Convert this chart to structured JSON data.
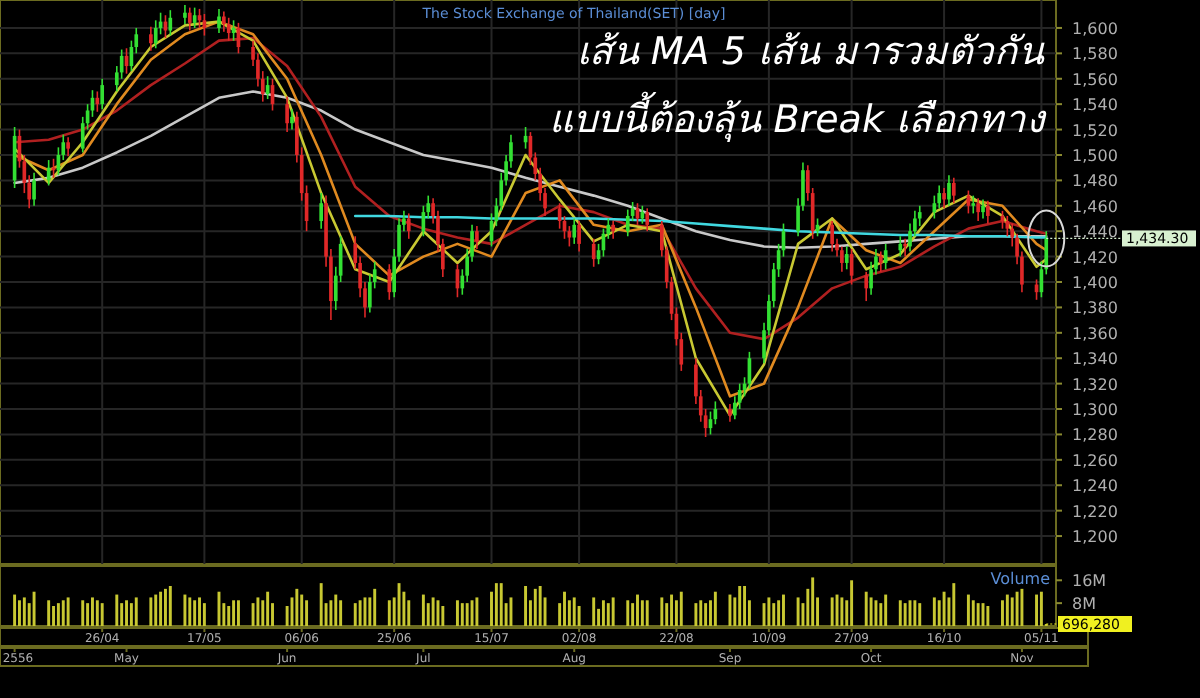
{
  "chart_data": [
    {
      "type": "candlestick",
      "title": "The Stock Exchange of Thailand(SET) [day]",
      "annotations": [
        "เส้น MA 5 เส้น  มารวมตัวกัน",
        "แบบนี้ต้องลุ้น Break เลือกทาง",
        {
          "text": "1,434.30",
          "x": "--11-06",
          "y": 1434.3
        }
      ],
      "x": [
        "--04-08",
        "--04-09",
        "--04-10",
        "--04-11",
        "--04-12",
        "--04-15",
        "--04-16",
        "--04-17",
        "--04-18",
        "--04-19",
        "--04-22",
        "--04-23",
        "--04-24",
        "--04-25",
        "--04-26",
        "--04-29",
        "--04-30",
        "--05-01",
        "--05-02",
        "--05-03",
        "--05-06",
        "--05-07",
        "--05-08",
        "--05-09",
        "--05-10",
        "--05-13",
        "--05-14",
        "--05-15",
        "--05-16",
        "--05-17",
        "--05-20",
        "--05-21",
        "--05-22",
        "--05-23",
        "--05-24",
        "--05-27",
        "--05-28",
        "--05-29",
        "--05-30",
        "--05-31",
        "--06-03",
        "--06-04",
        "--06-05",
        "--06-06",
        "--06-07",
        "--06-10",
        "--06-11",
        "--06-12",
        "--06-13",
        "--06-14",
        "--06-17",
        "--06-18",
        "--06-19",
        "--06-20",
        "--06-21",
        "--06-24",
        "--06-25",
        "--06-26",
        "--06-27",
        "--06-28",
        "--07-01",
        "--07-02",
        "--07-03",
        "--07-04",
        "--07-05",
        "--07-08",
        "--07-09",
        "--07-10",
        "--07-11",
        "--07-12",
        "--07-15",
        "--07-16",
        "--07-17",
        "--07-18",
        "--07-19",
        "--07-22",
        "--07-23",
        "--07-24",
        "--07-25",
        "--07-26",
        "--07-29",
        "--07-30",
        "--07-31",
        "--08-01",
        "--08-02",
        "--08-05",
        "--08-06",
        "--08-07",
        "--08-08",
        "--08-09",
        "--08-12",
        "--08-13",
        "--08-14",
        "--08-15",
        "--08-16",
        "--08-19",
        "--08-20",
        "--08-21",
        "--08-22",
        "--08-23",
        "--08-26",
        "--08-27",
        "--08-28",
        "--08-29",
        "--08-30",
        "--09-02",
        "--09-03",
        "--09-04",
        "--09-05",
        "--09-06",
        "--09-09",
        "--09-10",
        "--09-11",
        "--09-12",
        "--09-13",
        "--09-16",
        "--09-17",
        "--09-18",
        "--09-19",
        "--09-20",
        "--09-23",
        "--09-24",
        "--09-25",
        "--09-26",
        "--09-27",
        "--09-30",
        "--10-01",
        "--10-02",
        "--10-03",
        "--10-04",
        "--10-07",
        "--10-08",
        "--10-09",
        "--10-10",
        "--10-11",
        "--10-14",
        "--10-15",
        "--10-16",
        "--10-17",
        "--10-18",
        "--10-21",
        "--10-22",
        "--10-23",
        "--10-24",
        "--10-25",
        "--10-28",
        "--10-29",
        "--10-30",
        "--10-31",
        "--11-01",
        "--11-04",
        "--11-05",
        "--11-06"
      ],
      "ohlc": [
        [
          1480,
          1522,
          1474,
          1515
        ],
        [
          1515,
          1520,
          1490,
          1495
        ],
        [
          1495,
          1500,
          1470,
          1478
        ],
        [
          1478,
          1484,
          1458,
          1465
        ],
        [
          1465,
          1486,
          1460,
          1480
        ],
        [
          1480,
          1496,
          1476,
          1490
        ],
        [
          1490,
          1497,
          1482,
          1488
        ],
        [
          1488,
          1506,
          1484,
          1500
        ],
        [
          1500,
          1516,
          1496,
          1510
        ],
        [
          1510,
          1514,
          1499,
          1505
        ],
        [
          1505,
          1530,
          1502,
          1525
        ],
        [
          1525,
          1540,
          1520,
          1535
        ],
        [
          1535,
          1551,
          1530,
          1545
        ],
        [
          1545,
          1550,
          1534,
          1540
        ],
        [
          1540,
          1560,
          1536,
          1555
        ],
        [
          1555,
          1570,
          1550,
          1565
        ],
        [
          1565,
          1583,
          1560,
          1578
        ],
        [
          1578,
          1584,
          1564,
          1570
        ],
        [
          1570,
          1590,
          1566,
          1585
        ],
        [
          1585,
          1600,
          1580,
          1595
        ],
        [
          1595,
          1601,
          1582,
          1588
        ],
        [
          1588,
          1606,
          1584,
          1600
        ],
        [
          1600,
          1612,
          1595,
          1605
        ],
        [
          1605,
          1610,
          1592,
          1598
        ],
        [
          1598,
          1614,
          1594,
          1608
        ],
        [
          1608,
          1618,
          1603,
          1612
        ],
        [
          1612,
          1616,
          1598,
          1604
        ],
        [
          1604,
          1616,
          1600,
          1610
        ],
        [
          1610,
          1615,
          1600,
          1606
        ],
        [
          1606,
          1611,
          1594,
          1600
        ],
        [
          1600,
          1615,
          1596,
          1609
        ],
        [
          1609,
          1613,
          1597,
          1603
        ],
        [
          1603,
          1608,
          1590,
          1596
        ],
        [
          1596,
          1606,
          1590,
          1600
        ],
        [
          1600,
          1604,
          1580,
          1585
        ],
        [
          1585,
          1590,
          1570,
          1575
        ],
        [
          1575,
          1580,
          1554,
          1560
        ],
        [
          1560,
          1566,
          1542,
          1548
        ],
        [
          1548,
          1562,
          1544,
          1555
        ],
        [
          1555,
          1560,
          1535,
          1540
        ],
        [
          1540,
          1546,
          1518,
          1525
        ],
        [
          1525,
          1536,
          1520,
          1530
        ],
        [
          1530,
          1534,
          1494,
          1500
        ],
        [
          1500,
          1506,
          1464,
          1470
        ],
        [
          1470,
          1476,
          1440,
          1448
        ],
        [
          1448,
          1470,
          1442,
          1462
        ],
        [
          1462,
          1468,
          1412,
          1420
        ],
        [
          1420,
          1426,
          1370,
          1385
        ],
        [
          1385,
          1412,
          1378,
          1405
        ],
        [
          1405,
          1436,
          1400,
          1430
        ],
        [
          1430,
          1436,
          1410,
          1415
        ],
        [
          1415,
          1420,
          1388,
          1395
        ],
        [
          1395,
          1400,
          1372,
          1380
        ],
        [
          1380,
          1406,
          1376,
          1400
        ],
        [
          1400,
          1416,
          1395,
          1410
        ],
        [
          1410,
          1414,
          1386,
          1392
        ],
        [
          1392,
          1426,
          1388,
          1420
        ],
        [
          1420,
          1450,
          1416,
          1445
        ],
        [
          1445,
          1456,
          1440,
          1450
        ],
        [
          1450,
          1454,
          1434,
          1440
        ],
        [
          1440,
          1460,
          1436,
          1455
        ],
        [
          1455,
          1468,
          1450,
          1462
        ],
        [
          1462,
          1466,
          1446,
          1452
        ],
        [
          1452,
          1456,
          1424,
          1430
        ],
        [
          1430,
          1434,
          1404,
          1410
        ],
        [
          1410,
          1414,
          1388,
          1395
        ],
        [
          1395,
          1410,
          1390,
          1405
        ],
        [
          1405,
          1426,
          1400,
          1420
        ],
        [
          1420,
          1445,
          1416,
          1440
        ],
        [
          1440,
          1444,
          1426,
          1432
        ],
        [
          1432,
          1454,
          1428,
          1448
        ],
        [
          1448,
          1466,
          1444,
          1460
        ],
        [
          1460,
          1486,
          1456,
          1480
        ],
        [
          1480,
          1500,
          1476,
          1495
        ],
        [
          1495,
          1516,
          1490,
          1510
        ],
        [
          1510,
          1522,
          1505,
          1515
        ],
        [
          1515,
          1518,
          1492,
          1498
        ],
        [
          1498,
          1502,
          1480,
          1485
        ],
        [
          1485,
          1490,
          1464,
          1470
        ],
        [
          1470,
          1474,
          1452,
          1458
        ],
        [
          1458,
          1462,
          1442,
          1448
        ],
        [
          1448,
          1452,
          1434,
          1440
        ],
        [
          1440,
          1444,
          1428,
          1435
        ],
        [
          1435,
          1450,
          1430,
          1445
        ],
        [
          1445,
          1448,
          1424,
          1430
        ],
        [
          1430,
          1434,
          1412,
          1418
        ],
        [
          1418,
          1430,
          1414,
          1425
        ],
        [
          1425,
          1442,
          1420,
          1438
        ],
        [
          1438,
          1450,
          1434,
          1445
        ],
        [
          1445,
          1448,
          1434,
          1440
        ],
        [
          1440,
          1457,
          1436,
          1452
        ],
        [
          1452,
          1463,
          1448,
          1458
        ],
        [
          1458,
          1462,
          1445,
          1450
        ],
        [
          1450,
          1460,
          1446,
          1455
        ],
        [
          1455,
          1458,
          1440,
          1445
        ],
        [
          1445,
          1448,
          1420,
          1425
        ],
        [
          1425,
          1428,
          1395,
          1400
        ],
        [
          1400,
          1404,
          1370,
          1375
        ],
        [
          1375,
          1380,
          1350,
          1355
        ],
        [
          1355,
          1360,
          1330,
          1335
        ],
        [
          1335,
          1340,
          1304,
          1310
        ],
        [
          1310,
          1315,
          1290,
          1295
        ],
        [
          1295,
          1300,
          1278,
          1285
        ],
        [
          1285,
          1298,
          1280,
          1292
        ],
        [
          1292,
          1306,
          1288,
          1300
        ],
        [
          1300,
          1304,
          1290,
          1295
        ],
        [
          1295,
          1310,
          1292,
          1305
        ],
        [
          1305,
          1320,
          1300,
          1315
        ],
        [
          1315,
          1325,
          1310,
          1320
        ],
        [
          1320,
          1345,
          1316,
          1340
        ],
        [
          1340,
          1368,
          1336,
          1362
        ],
        [
          1362,
          1390,
          1358,
          1385
        ],
        [
          1385,
          1415,
          1380,
          1410
        ],
        [
          1410,
          1430,
          1404,
          1425
        ],
        [
          1425,
          1446,
          1420,
          1440
        ],
        [
          1440,
          1466,
          1436,
          1460
        ],
        [
          1460,
          1494,
          1456,
          1488
        ],
        [
          1488,
          1492,
          1464,
          1470
        ],
        [
          1470,
          1474,
          1434,
          1440
        ],
        [
          1440,
          1450,
          1436,
          1445
        ],
        [
          1445,
          1448,
          1424,
          1430
        ],
        [
          1430,
          1434,
          1420,
          1425
        ],
        [
          1425,
          1428,
          1408,
          1415
        ],
        [
          1415,
          1428,
          1410,
          1422
        ],
        [
          1422,
          1426,
          1398,
          1405
        ],
        [
          1405,
          1408,
          1385,
          1395
        ],
        [
          1395,
          1416,
          1390,
          1410
        ],
        [
          1410,
          1426,
          1406,
          1420
        ],
        [
          1420,
          1424,
          1408,
          1415
        ],
        [
          1415,
          1430,
          1410,
          1425
        ],
        [
          1425,
          1436,
          1420,
          1430
        ],
        [
          1430,
          1434,
          1420,
          1428
        ],
        [
          1428,
          1446,
          1424,
          1440
        ],
        [
          1440,
          1456,
          1436,
          1450
        ],
        [
          1450,
          1460,
          1444,
          1455
        ],
        [
          1455,
          1468,
          1450,
          1462
        ],
        [
          1462,
          1476,
          1458,
          1470
        ],
        [
          1470,
          1474,
          1458,
          1465
        ],
        [
          1465,
          1484,
          1460,
          1478
        ],
        [
          1478,
          1482,
          1462,
          1468
        ],
        [
          1468,
          1472,
          1454,
          1460
        ],
        [
          1460,
          1468,
          1454,
          1462
        ],
        [
          1462,
          1466,
          1448,
          1455
        ],
        [
          1455,
          1465,
          1450,
          1460
        ],
        [
          1460,
          1464,
          1446,
          1452
        ],
        [
          1452,
          1456,
          1442,
          1448
        ],
        [
          1448,
          1452,
          1436,
          1442
        ],
        [
          1442,
          1446,
          1428,
          1435
        ],
        [
          1435,
          1438,
          1414,
          1420
        ],
        [
          1420,
          1424,
          1392,
          1398
        ],
        [
          1398,
          1402,
          1386,
          1392
        ],
        [
          1392,
          1416,
          1388,
          1410
        ],
        [
          1410,
          1440,
          1406,
          1434.3
        ]
      ],
      "series": [
        {
          "type": "line",
          "color": "#c8c8c8",
          "x": [
            "--04-08",
            "--04-15",
            "--04-22",
            "--04-29",
            "--05-06",
            "--05-13",
            "--05-20",
            "--05-27",
            "--06-03",
            "--06-10",
            "--06-17",
            "--06-24",
            "--07-01",
            "--07-08",
            "--07-15",
            "--07-22",
            "--07-29",
            "--08-05",
            "--08-12",
            "--08-19",
            "--08-26",
            "--09-02",
            "--09-09",
            "--09-16",
            "--09-23",
            "--09-30",
            "--10-07",
            "--10-14",
            "--10-21",
            "--10-28",
            "--11-04",
            "--11-06"
          ],
          "values": [
            1478,
            1482,
            1490,
            1502,
            1515,
            1530,
            1545,
            1550,
            1545,
            1535,
            1520,
            1510,
            1500,
            1495,
            1490,
            1482,
            1475,
            1468,
            1460,
            1450,
            1440,
            1433,
            1428,
            1427,
            1428,
            1430,
            1432,
            1434,
            1436,
            1436,
            1436,
            1436
          ]
        },
        {
          "type": "line",
          "color": "#b02020",
          "x": [
            "--04-08",
            "--04-15",
            "--04-22",
            "--04-29",
            "--05-06",
            "--05-13",
            "--05-20",
            "--05-27",
            "--06-03",
            "--06-10",
            "--06-17",
            "--06-24",
            "--07-01",
            "--07-08",
            "--07-15",
            "--07-22",
            "--07-29",
            "--08-05",
            "--08-12",
            "--08-19",
            "--08-26",
            "--09-02",
            "--09-09",
            "--09-16",
            "--09-23",
            "--09-30",
            "--10-07",
            "--10-14",
            "--10-21",
            "--10-28",
            "--11-04",
            "--11-06"
          ],
          "values": [
            1510,
            1512,
            1520,
            1535,
            1555,
            1572,
            1590,
            1592,
            1570,
            1530,
            1475,
            1452,
            1442,
            1435,
            1430,
            1445,
            1460,
            1455,
            1445,
            1442,
            1395,
            1360,
            1355,
            1372,
            1395,
            1405,
            1412,
            1428,
            1442,
            1448,
            1440,
            1438
          ]
        },
        {
          "type": "line",
          "color": "#e08a20",
          "x": [
            "--04-08",
            "--04-15",
            "--04-22",
            "--04-29",
            "--05-06",
            "--05-13",
            "--05-20",
            "--05-27",
            "--06-03",
            "--06-10",
            "--06-17",
            "--06-24",
            "--07-01",
            "--07-08",
            "--07-15",
            "--07-22",
            "--07-29",
            "--08-05",
            "--08-12",
            "--08-19",
            "--08-26",
            "--09-02",
            "--09-09",
            "--09-16",
            "--09-23",
            "--09-30",
            "--10-07",
            "--10-14",
            "--10-21",
            "--10-28",
            "--11-04",
            "--11-06"
          ],
          "values": [
            1500,
            1488,
            1500,
            1540,
            1575,
            1595,
            1605,
            1595,
            1560,
            1500,
            1430,
            1405,
            1420,
            1430,
            1420,
            1470,
            1480,
            1445,
            1440,
            1445,
            1380,
            1310,
            1320,
            1380,
            1450,
            1425,
            1415,
            1440,
            1465,
            1460,
            1430,
            1425
          ]
        },
        {
          "type": "line",
          "color": "#c8c832",
          "x": [
            "--04-08",
            "--04-15",
            "--04-22",
            "--04-29",
            "--05-06",
            "--05-13",
            "--05-20",
            "--05-27",
            "--06-03",
            "--06-10",
            "--06-17",
            "--06-24",
            "--07-01",
            "--07-08",
            "--07-15",
            "--07-22",
            "--07-29",
            "--08-05",
            "--08-12",
            "--08-19",
            "--08-26",
            "--09-02",
            "--09-09",
            "--09-16",
            "--09-23",
            "--09-30",
            "--10-07",
            "--10-14",
            "--10-21",
            "--10-28",
            "--11-04",
            "--11-06"
          ],
          "values": [
            1505,
            1478,
            1510,
            1550,
            1585,
            1602,
            1605,
            1590,
            1545,
            1470,
            1410,
            1400,
            1440,
            1415,
            1440,
            1500,
            1465,
            1432,
            1445,
            1440,
            1340,
            1295,
            1335,
            1430,
            1450,
            1410,
            1422,
            1455,
            1468,
            1452,
            1412,
            1418
          ]
        },
        {
          "type": "line",
          "color": "#40d8e0",
          "x": [
            "--06-17",
            "--06-24",
            "--07-01",
            "--07-08",
            "--07-15",
            "--07-22",
            "--07-29",
            "--08-05",
            "--08-12",
            "--08-19",
            "--08-26",
            "--09-02",
            "--09-09",
            "--09-16",
            "--09-23",
            "--09-30",
            "--10-07",
            "--10-14",
            "--10-21",
            "--10-28",
            "--11-04",
            "--11-06"
          ],
          "values": [
            1452,
            1452,
            1451,
            1451,
            1450,
            1450,
            1450,
            1450,
            1449,
            1448,
            1446,
            1444,
            1442,
            1440,
            1439,
            1438,
            1437,
            1437,
            1436,
            1436,
            1435,
            1435
          ]
        }
      ],
      "xlim": [
        "--04-05",
        "--11-08"
      ],
      "ylim": [
        1178,
        1622
      ],
      "yticks": [
        {
          "value": 1200,
          "label": "1,200"
        },
        {
          "value": 1220,
          "label": "1,220"
        },
        {
          "value": 1240,
          "label": "1,240"
        },
        {
          "value": 1260,
          "label": "1,260"
        },
        {
          "value": 1280,
          "label": "1,280"
        },
        {
          "value": 1300,
          "label": "1,300"
        },
        {
          "value": 1320,
          "label": "1,320"
        },
        {
          "value": 1340,
          "label": "1,340"
        },
        {
          "value": 1360,
          "label": "1,360"
        },
        {
          "value": 1380,
          "label": "1,380"
        },
        {
          "value": 1400,
          "label": "1,400"
        },
        {
          "value": 1420,
          "label": "1,420"
        },
        {
          "value": 1440,
          "label": "1,440"
        },
        {
          "value": 1460,
          "label": "1,460"
        },
        {
          "value": 1480,
          "label": "1,480"
        },
        {
          "value": 1500,
          "label": "1,500"
        },
        {
          "value": 1520,
          "label": "1,520"
        },
        {
          "value": 1540,
          "label": "1,540"
        },
        {
          "value": 1560,
          "label": "1,560"
        },
        {
          "value": 1580,
          "label": "1,580"
        },
        {
          "value": 1600,
          "label": "1,600"
        }
      ],
      "xticks": [
        {
          "value": "--04-26",
          "label": null
        },
        {
          "value": "--05-17",
          "label": null
        },
        {
          "value": "--06-06",
          "label": null
        },
        {
          "value": "--06-25",
          "label": null
        },
        {
          "value": "--07-15",
          "label": null
        },
        {
          "value": "--08-02",
          "label": null
        },
        {
          "value": "--08-22",
          "label": null
        },
        {
          "value": "--09-10",
          "label": null
        },
        {
          "value": "--09-27",
          "label": null
        },
        {
          "value": "--10-16",
          "label": null
        },
        {
          "value": "--11-05",
          "label": null
        }
      ],
      "grid": true,
      "tick_labels": "y"
    },
    {
      "type": "bar",
      "title": "Volume",
      "color": "#c8c832",
      "x": [
        "--04-08",
        "--04-09",
        "--04-10",
        "--04-11",
        "--04-12",
        "--04-15",
        "--04-16",
        "--04-17",
        "--04-18",
        "--04-19",
        "--04-22",
        "--04-23",
        "--04-24",
        "--04-25",
        "--04-26",
        "--04-29",
        "--04-30",
        "--05-01",
        "--05-02",
        "--05-03",
        "--05-06",
        "--05-07",
        "--05-08",
        "--05-09",
        "--05-10",
        "--05-13",
        "--05-14",
        "--05-15",
        "--05-16",
        "--05-17",
        "--05-20",
        "--05-21",
        "--05-22",
        "--05-23",
        "--05-24",
        "--05-27",
        "--05-28",
        "--05-29",
        "--05-30",
        "--05-31",
        "--06-03",
        "--06-04",
        "--06-05",
        "--06-06",
        "--06-07",
        "--06-10",
        "--06-11",
        "--06-12",
        "--06-13",
        "--06-14",
        "--06-17",
        "--06-18",
        "--06-19",
        "--06-20",
        "--06-21",
        "--06-24",
        "--06-25",
        "--06-26",
        "--06-27",
        "--06-28",
        "--07-01",
        "--07-02",
        "--07-03",
        "--07-04",
        "--07-05",
        "--07-08",
        "--07-09",
        "--07-10",
        "--07-11",
        "--07-12",
        "--07-15",
        "--07-16",
        "--07-17",
        "--07-18",
        "--07-19",
        "--07-22",
        "--07-23",
        "--07-24",
        "--07-25",
        "--07-26",
        "--07-29",
        "--07-30",
        "--07-31",
        "--08-01",
        "--08-02",
        "--08-05",
        "--08-06",
        "--08-07",
        "--08-08",
        "--08-09",
        "--08-12",
        "--08-13",
        "--08-14",
        "--08-15",
        "--08-16",
        "--08-19",
        "--08-20",
        "--08-21",
        "--08-22",
        "--08-23",
        "--08-26",
        "--08-27",
        "--08-28",
        "--08-29",
        "--08-30",
        "--09-02",
        "--09-03",
        "--09-04",
        "--09-05",
        "--09-06",
        "--09-09",
        "--09-10",
        "--09-11",
        "--09-12",
        "--09-13",
        "--09-16",
        "--09-17",
        "--09-18",
        "--09-19",
        "--09-20",
        "--09-23",
        "--09-24",
        "--09-25",
        "--09-26",
        "--09-27",
        "--09-30",
        "--10-01",
        "--10-02",
        "--10-03",
        "--10-04",
        "--10-07",
        "--10-08",
        "--10-09",
        "--10-10",
        "--10-11",
        "--10-14",
        "--10-15",
        "--10-16",
        "--10-17",
        "--10-18",
        "--10-21",
        "--10-22",
        "--10-23",
        "--10-24",
        "--10-25",
        "--10-28",
        "--10-29",
        "--10-30",
        "--10-31",
        "--11-01",
        "--11-04",
        "--11-05",
        "--11-06"
      ],
      "values": [
        11,
        9,
        10,
        8,
        12,
        9,
        7,
        8,
        9,
        10,
        9,
        8,
        10,
        9,
        8,
        11,
        8,
        9,
        8,
        10,
        10,
        11,
        12,
        13,
        14,
        11,
        10,
        9,
        10,
        8,
        12,
        8,
        7,
        9,
        9,
        8,
        10,
        9,
        12,
        8,
        7,
        10,
        13,
        11,
        9,
        15,
        8,
        9,
        11,
        9,
        8,
        9,
        10,
        10,
        13,
        9,
        10,
        15,
        12,
        9,
        11,
        8,
        10,
        9,
        7,
        9,
        8,
        8,
        9,
        10,
        12,
        15,
        15,
        8,
        10,
        14,
        9,
        13,
        14,
        10,
        8,
        12,
        9,
        10,
        7,
        10,
        6,
        9,
        8,
        10,
        9,
        8,
        11,
        9,
        9,
        10,
        8,
        11,
        9,
        12,
        8,
        9,
        8,
        9,
        12,
        11,
        10,
        14,
        14,
        9,
        8,
        10,
        8,
        9,
        11,
        10,
        8,
        13,
        17,
        10,
        10,
        11,
        10,
        9,
        16,
        12,
        10,
        9,
        8,
        11,
        9,
        8,
        9,
        9,
        8,
        10,
        9,
        12,
        10,
        15,
        11,
        9,
        8,
        8,
        7,
        9,
        11,
        10,
        12,
        13,
        11,
        12,
        0.7
      ],
      "xlim": [
        "--04-05",
        "--11-08"
      ],
      "ylim": [
        0,
        21
      ],
      "yticks": [
        {
          "value": 8,
          "label": "8M"
        },
        {
          "value": 16,
          "label": "16M"
        }
      ],
      "xticks": [
        {
          "value": "--04-26",
          "label": "26/04"
        },
        {
          "value": "--05-17",
          "label": "17/05"
        },
        {
          "value": "--06-06",
          "label": "06/06"
        },
        {
          "value": "--06-25",
          "label": "25/06"
        },
        {
          "value": "--07-15",
          "label": "15/07"
        },
        {
          "value": "--08-02",
          "label": "02/08"
        },
        {
          "value": "--08-22",
          "label": "22/08"
        },
        {
          "value": "--09-10",
          "label": "10/09"
        },
        {
          "value": "--09-27",
          "label": "27/09"
        },
        {
          "value": "--10-16",
          "label": "16/10"
        },
        {
          "value": "--11-05",
          "label": "05/11"
        }
      ],
      "x2lim": [
        "--04-05",
        "--11-08"
      ],
      "x2ticks": [
        {
          "value": "--04-08",
          "label": "2556"
        },
        {
          "value": "--05-01",
          "label": "May"
        },
        {
          "value": "--06-03",
          "label": "Jun"
        },
        {
          "value": "--07-01",
          "label": "Jul"
        },
        {
          "value": "--08-01",
          "label": "Aug"
        },
        {
          "value": "--09-02",
          "label": "Sep"
        },
        {
          "value": "--10-01",
          "label": "Oct"
        },
        {
          "value": "--11-01",
          "label": "Nov"
        }
      ],
      "annotations": [
        {
          "text": "696,280",
          "x": "--11-06",
          "y": 0.7
        }
      ]
    }
  ]
}
